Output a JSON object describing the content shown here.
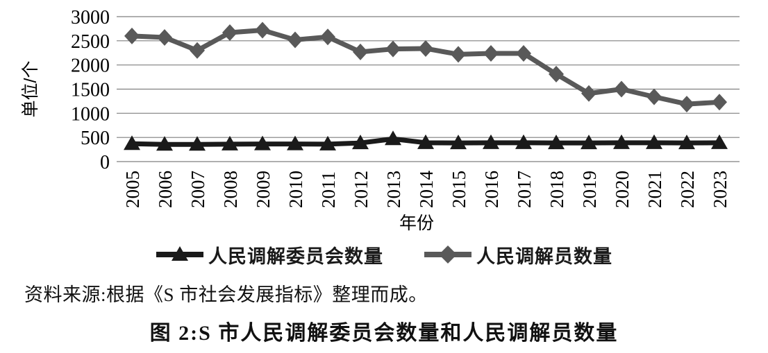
{
  "page": {
    "source_note": "资料来源:根据《S 市社会发展指标》整理而成。",
    "caption": "图 2:S 市人民调解委员会数量和人民调解员数量"
  },
  "chart_data": {
    "type": "line",
    "title": "",
    "xlabel": "年份",
    "ylabel": "单位/个",
    "ylim": [
      0,
      3000
    ],
    "yticks": [
      0,
      500,
      1000,
      1500,
      2000,
      2500,
      3000
    ],
    "grid": true,
    "legend_position": "bottom",
    "categories": [
      "2005",
      "2006",
      "2007",
      "2008",
      "2009",
      "2010",
      "2011",
      "2012",
      "2013",
      "2014",
      "2015",
      "2016",
      "2017",
      "2018",
      "2019",
      "2020",
      "2021",
      "2022",
      "2023"
    ],
    "series": [
      {
        "name": "人民调解委员会数量",
        "marker": "triangle",
        "color": "#1a1a1a",
        "values": [
          370,
          355,
          355,
          360,
          365,
          365,
          360,
          385,
          470,
          390,
          385,
          390,
          390,
          385,
          385,
          390,
          390,
          385,
          390
        ]
      },
      {
        "name": "人民调解员数量",
        "marker": "diamond",
        "color": "#595959",
        "values": [
          2600,
          2570,
          2300,
          2670,
          2720,
          2520,
          2580,
          2270,
          2330,
          2340,
          2220,
          2240,
          2240,
          1810,
          1410,
          1500,
          1340,
          1190,
          1230
        ]
      }
    ],
    "colors": {
      "gridline": "#7f7f7f",
      "committee_line": "#1a1a1a",
      "mediator_line": "#595959"
    }
  }
}
